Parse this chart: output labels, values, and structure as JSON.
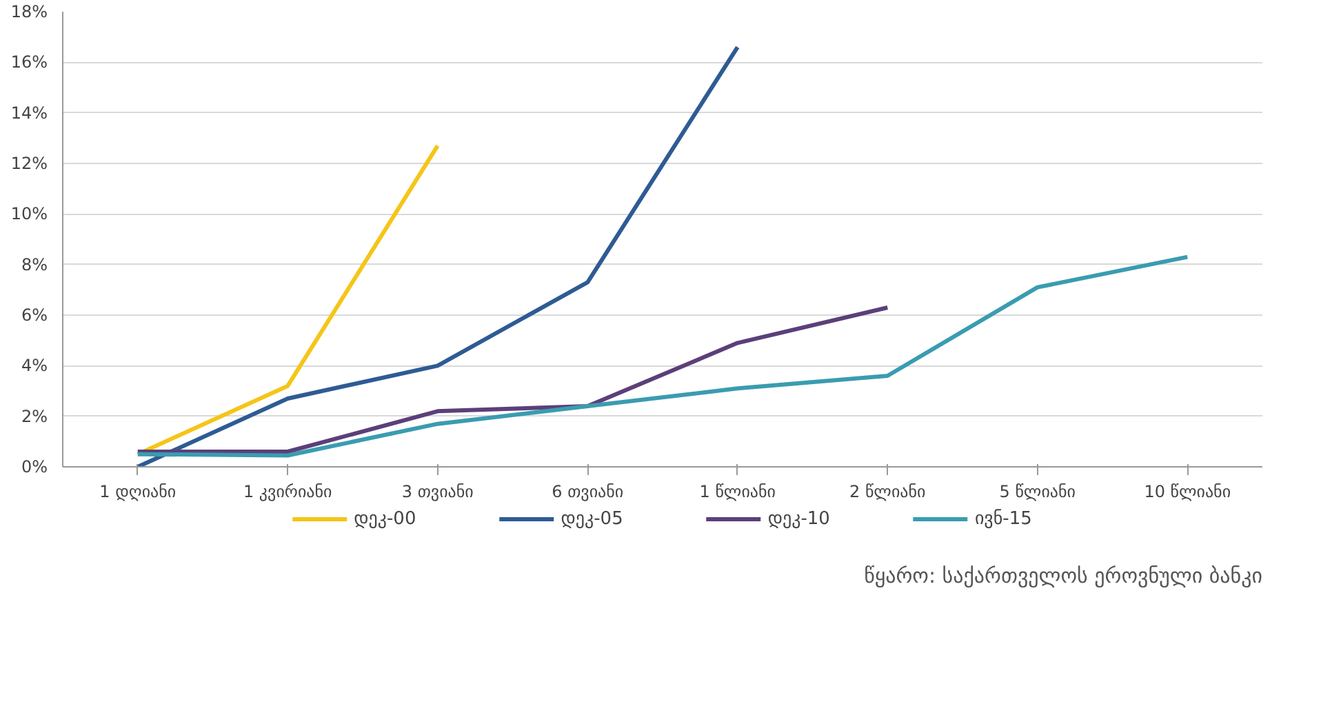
{
  "chart_data": {
    "type": "line",
    "categories": [
      "1 დღიანი",
      "1 კვირიანი",
      "3 თვიანი",
      "6 თვიანი",
      "1 წლიანი",
      "2 წლიანი",
      "5 წლიანი",
      "10 წლიანი"
    ],
    "series": [
      {
        "name": "დეკ-00",
        "color": "#f5c518",
        "values": [
          0.5,
          3.2,
          12.7,
          null,
          null,
          null,
          null,
          null
        ]
      },
      {
        "name": "დეკ-05",
        "color": "#2e5b94",
        "values": [
          0,
          2.7,
          4.0,
          7.3,
          16.6,
          null,
          null,
          null
        ]
      },
      {
        "name": "დეკ-10",
        "color": "#5b3f7a",
        "values": [
          0.6,
          0.6,
          2.2,
          2.4,
          4.9,
          6.3,
          null,
          null
        ]
      },
      {
        "name": "ივნ-15",
        "color": "#3a9cb0",
        "values": [
          0.5,
          0.45,
          1.7,
          2.4,
          3.1,
          3.6,
          7.1,
          8.3
        ]
      }
    ],
    "ylim": [
      0,
      18
    ],
    "yticks": [
      {
        "value": 0,
        "label": "0%"
      },
      {
        "value": 2,
        "label": "2%"
      },
      {
        "value": 4,
        "label": "4%"
      },
      {
        "value": 6,
        "label": "6%"
      },
      {
        "value": 8,
        "label": "8%"
      },
      {
        "value": 10,
        "label": "10%"
      },
      {
        "value": 12,
        "label": "12%"
      },
      {
        "value": 14,
        "label": "14%"
      },
      {
        "value": 16,
        "label": "16%"
      },
      {
        "value": 18,
        "label": "18%"
      }
    ],
    "grid": "y",
    "legend": "bottom",
    "marker": "none",
    "line_style": "solid",
    "annotations": [
      "წყარო: საქართველოს ეროვნული ბანკი"
    ]
  }
}
